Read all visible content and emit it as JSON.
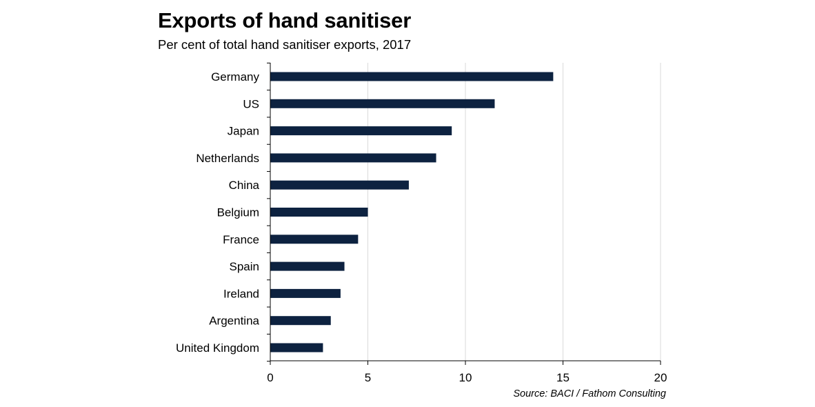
{
  "chart_data": {
    "type": "bar",
    "orientation": "horizontal",
    "title": "Exports of hand sanitiser",
    "subtitle": "Per cent of total hand sanitiser exports, 2017",
    "source": "Source: BACI / Fathom Consulting",
    "categories": [
      "Germany",
      "US",
      "Japan",
      "Netherlands",
      "China",
      "Belgium",
      "France",
      "Spain",
      "Ireland",
      "Argentina",
      "United Kingdom"
    ],
    "values": [
      14.5,
      11.5,
      9.3,
      8.5,
      7.1,
      5.0,
      4.5,
      3.8,
      3.6,
      3.1,
      2.7
    ],
    "xlim": [
      0,
      20
    ],
    "xticks": [
      0,
      5,
      10,
      15,
      20
    ],
    "xtick_labels": [
      "0",
      "5",
      "10",
      "15",
      "20"
    ],
    "xlabel": "",
    "ylabel": "",
    "grid": "vertical",
    "legend": "none",
    "bar_color": "#0d2240",
    "grid_color": "#d9d9d9",
    "axis_color": "#000000"
  }
}
